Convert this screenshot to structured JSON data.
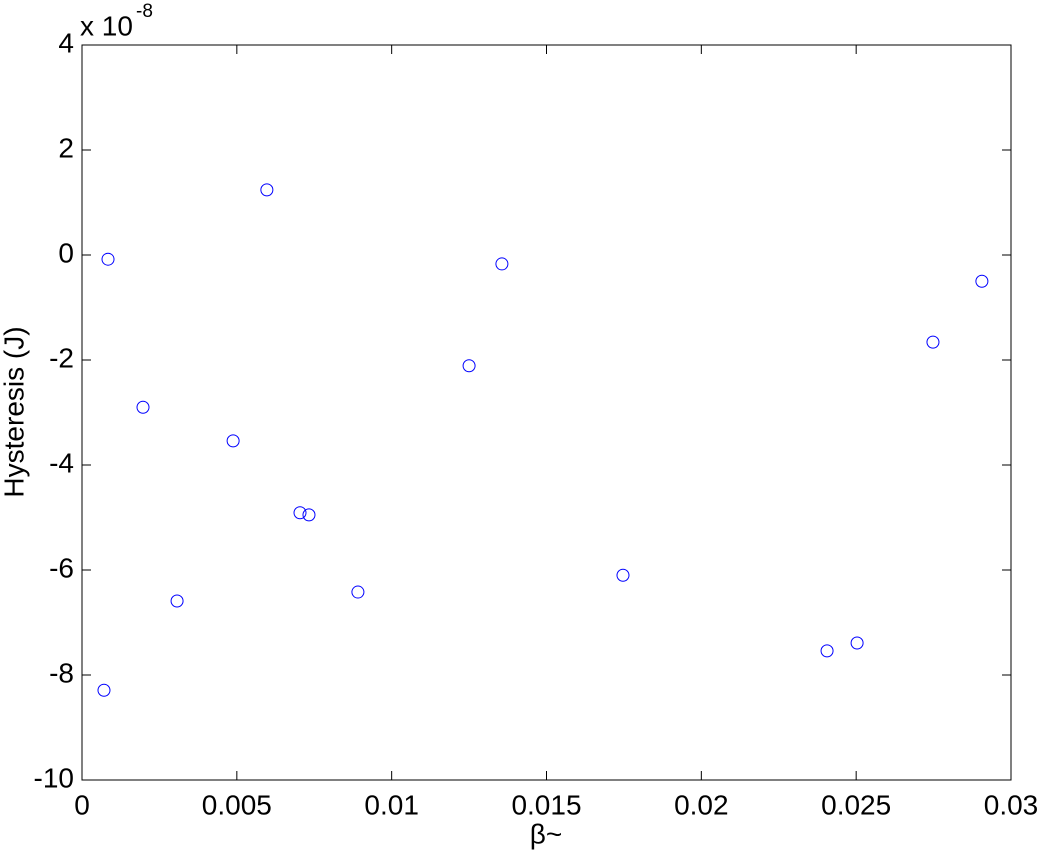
{
  "chart_data": {
    "type": "scatter",
    "xlabel": "β~",
    "ylabel": "Hysteresis (J)",
    "y_multiplier": "x 10",
    "y_multiplier_exponent": "-8",
    "color": "#0000ff",
    "x": [
      0.00084,
      0.00071,
      0.00197,
      0.00307,
      0.00488,
      0.00597,
      0.00704,
      0.00733,
      0.00891,
      0.0125,
      0.01356,
      0.01747,
      0.02406,
      0.02503,
      0.02748,
      0.02906
    ],
    "values": [
      -0.08,
      -8.29,
      -2.9,
      -6.59,
      -3.54,
      1.24,
      -4.91,
      -4.95,
      -6.42,
      -2.11,
      -0.17,
      -6.1,
      -7.54,
      -7.39,
      -1.66,
      -0.5
    ],
    "xlim": [
      0,
      0.03
    ],
    "xticks": [
      0,
      0.005,
      0.01,
      0.015,
      0.02,
      0.025,
      0.03
    ],
    "ylim": [
      -10,
      4
    ],
    "yticks": [
      -10,
      -8,
      -6,
      -4,
      -2,
      0,
      2,
      4
    ]
  }
}
